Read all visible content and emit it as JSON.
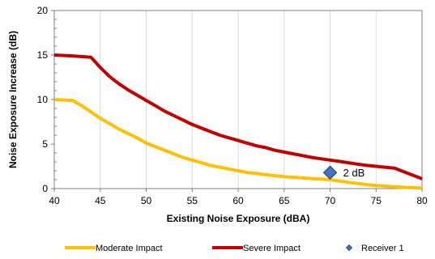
{
  "chart_data": {
    "type": "line",
    "title": "",
    "xlabel": "Existing Noise Exposure (dBA)",
    "ylabel": "Noise Exposure Increase (dB)",
    "xlim": [
      40,
      80
    ],
    "ylim": [
      0,
      20
    ],
    "x_ticks": [
      40,
      45,
      50,
      55,
      60,
      65,
      70,
      75,
      80
    ],
    "y_ticks": [
      0,
      5,
      10,
      15,
      20
    ],
    "grid": {
      "vertical": true,
      "horizontal": false
    },
    "legend_position": "bottom",
    "series": [
      {
        "name": "Moderate Impact",
        "color": "#FFC000",
        "points": [
          [
            40,
            10.0
          ],
          [
            42,
            9.9
          ],
          [
            43,
            9.3
          ],
          [
            44,
            8.6
          ],
          [
            45,
            7.9
          ],
          [
            46,
            7.3
          ],
          [
            47,
            6.7
          ],
          [
            48,
            6.2
          ],
          [
            49,
            5.7
          ],
          [
            50,
            5.1
          ],
          [
            51,
            4.7
          ],
          [
            52,
            4.3
          ],
          [
            53,
            3.9
          ],
          [
            54,
            3.5
          ],
          [
            55,
            3.2
          ],
          [
            56,
            2.9
          ],
          [
            57,
            2.6
          ],
          [
            58,
            2.4
          ],
          [
            59,
            2.2
          ],
          [
            60,
            2.0
          ],
          [
            61,
            1.8
          ],
          [
            62,
            1.7
          ],
          [
            63,
            1.55
          ],
          [
            64,
            1.45
          ],
          [
            65,
            1.35
          ],
          [
            66,
            1.27
          ],
          [
            67,
            1.19
          ],
          [
            68,
            1.12
          ],
          [
            69,
            1.06
          ],
          [
            70,
            1.0
          ],
          [
            71,
            0.85
          ],
          [
            72,
            0.7
          ],
          [
            73,
            0.57
          ],
          [
            74,
            0.45
          ],
          [
            75,
            0.35
          ],
          [
            76,
            0.27
          ],
          [
            77,
            0.2
          ],
          [
            78,
            0.14
          ],
          [
            79,
            0.1
          ],
          [
            80,
            0.05
          ]
        ]
      },
      {
        "name": "Severe Impact",
        "color": "#C00000",
        "points": [
          [
            40,
            15.0
          ],
          [
            42,
            14.9
          ],
          [
            44,
            14.75
          ],
          [
            45,
            13.6
          ],
          [
            46,
            12.6
          ],
          [
            47,
            11.8
          ],
          [
            48,
            11.1
          ],
          [
            49,
            10.5
          ],
          [
            50,
            9.9
          ],
          [
            51,
            9.3
          ],
          [
            52,
            8.7
          ],
          [
            53,
            8.2
          ],
          [
            54,
            7.7
          ],
          [
            55,
            7.2
          ],
          [
            56,
            6.8
          ],
          [
            57,
            6.4
          ],
          [
            58,
            6.0
          ],
          [
            59,
            5.7
          ],
          [
            60,
            5.4
          ],
          [
            61,
            5.1
          ],
          [
            62,
            4.8
          ],
          [
            63,
            4.6
          ],
          [
            64,
            4.3
          ],
          [
            65,
            4.1
          ],
          [
            66,
            3.9
          ],
          [
            67,
            3.7
          ],
          [
            68,
            3.5
          ],
          [
            69,
            3.35
          ],
          [
            70,
            3.2
          ],
          [
            71,
            3.05
          ],
          [
            72,
            2.9
          ],
          [
            73,
            2.75
          ],
          [
            74,
            2.6
          ],
          [
            75,
            2.5
          ],
          [
            76,
            2.4
          ],
          [
            77,
            2.3
          ],
          [
            78,
            1.9
          ],
          [
            79,
            1.5
          ],
          [
            80,
            1.1
          ]
        ]
      },
      {
        "name": "Receiver 1",
        "color": "#4472C4",
        "marker": "diamond",
        "points": [
          [
            70,
            1.8
          ]
        ],
        "label": "2 dB"
      }
    ]
  }
}
